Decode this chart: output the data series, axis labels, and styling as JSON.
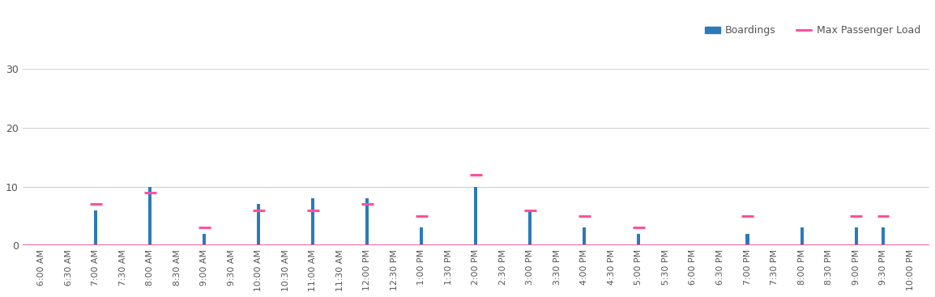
{
  "categories": [
    "6:00 AM",
    "6:30 AM",
    "7:00 AM",
    "7:30 AM",
    "8:00 AM",
    "8:30 AM",
    "9:00 AM",
    "9:30 AM",
    "10:00 AM",
    "10:30 AM",
    "11:00 AM",
    "11:30 AM",
    "12:00 PM",
    "12:30 PM",
    "1:00 PM",
    "1:30 PM",
    "2:00 PM",
    "2:30 PM",
    "3:00 PM",
    "3:30 PM",
    "4:00 PM",
    "4:30 PM",
    "5:00 PM",
    "5:30 PM",
    "6:00 PM",
    "6:30 PM",
    "7:00 PM",
    "7:30 PM",
    "8:00 PM",
    "8:30 PM",
    "9:00 PM",
    "9:30 PM",
    "10:00 PM"
  ],
  "boardings": [
    0,
    0,
    6,
    0,
    10,
    0,
    2,
    0,
    7,
    0,
    8,
    0,
    8,
    0,
    3,
    0,
    10,
    0,
    6,
    0,
    3,
    0,
    2,
    0,
    0,
    0,
    2,
    0,
    3,
    0,
    3,
    3,
    0
  ],
  "max_passenger_load": [
    0,
    0,
    7,
    0,
    9,
    0,
    3,
    0,
    6,
    0,
    6,
    0,
    7,
    0,
    5,
    0,
    12,
    0,
    6,
    0,
    5,
    0,
    3,
    0,
    0,
    0,
    5,
    0,
    0,
    0,
    5,
    5,
    0
  ],
  "bar_color": "#2b7bba",
  "line_color": "#ff4fa0",
  "background_color": "#ffffff",
  "ylim": [
    0,
    30
  ],
  "yticks": [
    0,
    10,
    20,
    30
  ],
  "grid_color": "#d0d0d0",
  "legend_boardings": "Boardings",
  "legend_max": "Max Passenger Load",
  "bar_width": 0.12
}
